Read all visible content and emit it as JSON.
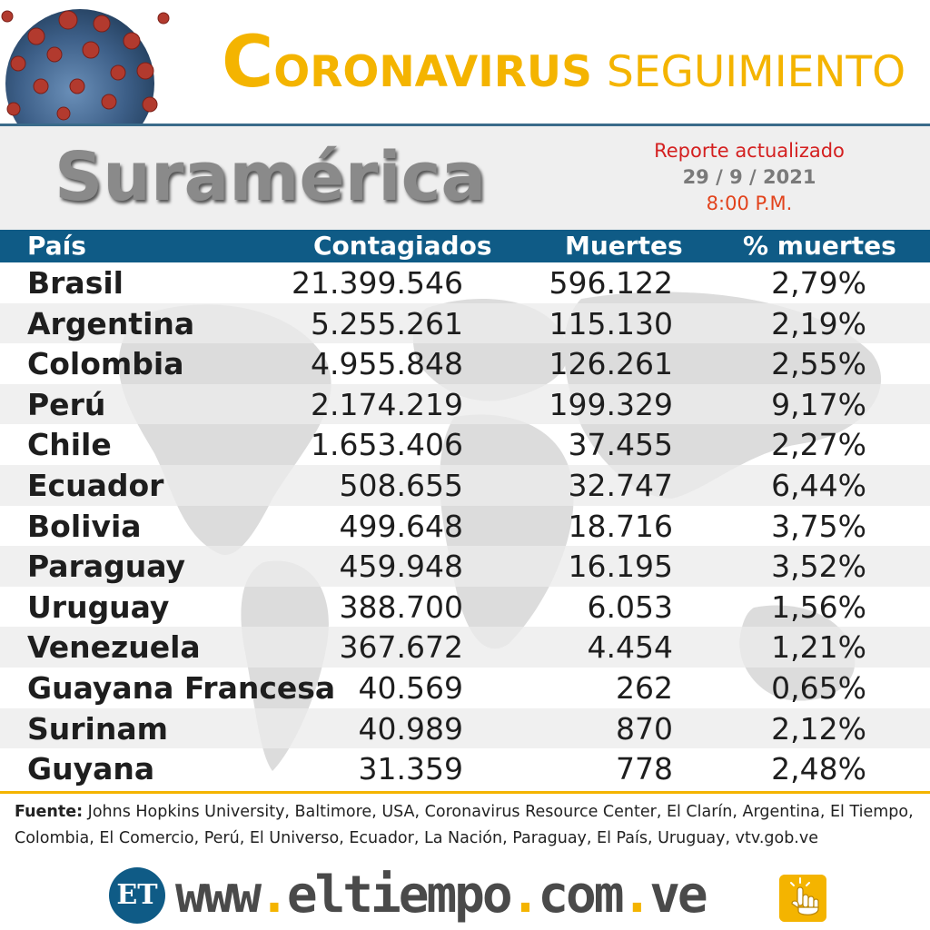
{
  "header": {
    "title_initial": "C",
    "title_rest": "ORONAVIRUS",
    "title_second": "SEGUIMIENTO"
  },
  "region": {
    "title": "Suramérica",
    "report_label": "Reporte actualizado",
    "report_date": "29  / 9 / 2021",
    "report_time": "8:00 P.M."
  },
  "table": {
    "headers": [
      "País",
      "Contagiados",
      "Muertes",
      "% muertes"
    ],
    "rows": [
      [
        "Brasil",
        "21.399.546",
        "596.122",
        "2,79%"
      ],
      [
        "Argentina",
        "5.255.261",
        "115.130",
        "2,19%"
      ],
      [
        "Colombia",
        "4.955.848",
        "126.261",
        "2,55%"
      ],
      [
        "Perú",
        "2.174.219",
        "199.329",
        "9,17%"
      ],
      [
        "Chile",
        "1.653.406",
        "37.455",
        "2,27%"
      ],
      [
        "Ecuador",
        "508.655",
        "32.747",
        "6,44%"
      ],
      [
        "Bolivia",
        "499.648",
        "18.716",
        "3,75%"
      ],
      [
        "Paraguay",
        "459.948",
        "16.195",
        "3,52%"
      ],
      [
        "Uruguay",
        "388.700",
        "6.053",
        "1,56%"
      ],
      [
        "Venezuela",
        "367.672",
        "4.454",
        "1,21%"
      ],
      [
        "Guayana Francesa",
        "40.569",
        "262",
        "0,65%"
      ],
      [
        "Surinam",
        "40.989",
        "870",
        "2,12%"
      ],
      [
        "Guyana",
        "31.359",
        "778",
        "2,48%"
      ]
    ]
  },
  "source": {
    "label": "Fuente:",
    "text": " Johns Hopkins University, Baltimore, USA, Coronavirus Resource Center,  El Clarín, Argentina, El Tiempo, Colombia, El Comercio, Perú, El Universo, Ecuador, La Nación, Paraguay, El País, Uruguay, vtv.gob.ve"
  },
  "footer": {
    "logo": "ET",
    "url_www": "www",
    "url_sep": ".",
    "url_domain": "eltiempo",
    "url_com": "com",
    "url_ve": "ve"
  },
  "colors": {
    "accent_yellow": "#f4b400",
    "header_blue": "#0f5b86",
    "report_red": "#d42020"
  },
  "icons": [
    "coronavirus-image",
    "world-map-watermark",
    "et-logo-icon",
    "touch-hand-icon"
  ]
}
